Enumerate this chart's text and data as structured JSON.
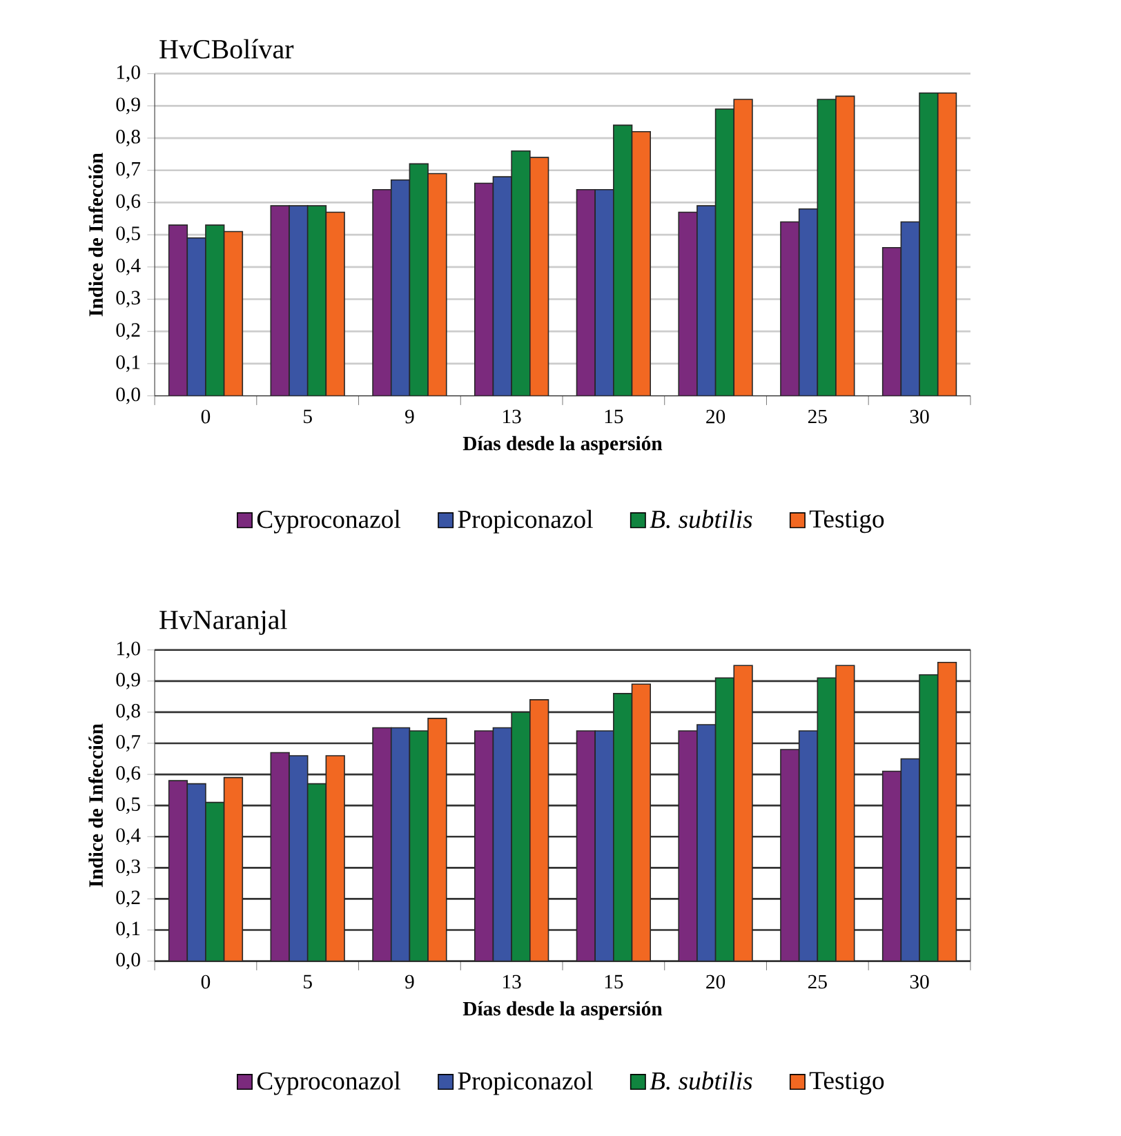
{
  "chart_data": [
    {
      "type": "bar",
      "title": "HvCBolívar",
      "xlabel": "Días desde la aspersión",
      "ylabel": "Indice de Infección",
      "categories": [
        "0",
        "5",
        "9",
        "13",
        "15",
        "20",
        "25",
        "30"
      ],
      "series": [
        {
          "name": "Cyproconazol",
          "color": "#7b2a7d",
          "values": [
            0.53,
            0.59,
            0.64,
            0.66,
            0.64,
            0.57,
            0.54,
            0.46
          ]
        },
        {
          "name": "Propiconazol",
          "color": "#3a55a4",
          "values": [
            0.49,
            0.59,
            0.67,
            0.68,
            0.64,
            0.59,
            0.58,
            0.54
          ]
        },
        {
          "name": "*B. subtilis*",
          "color": "#10843f",
          "values": [
            0.53,
            0.59,
            0.72,
            0.76,
            0.84,
            0.89,
            0.92,
            0.94
          ]
        },
        {
          "name": "Testigo",
          "color": "#f26822",
          "values": [
            0.51,
            0.57,
            0.69,
            0.74,
            0.82,
            0.92,
            0.93,
            0.94
          ]
        }
      ],
      "ylim": [
        0,
        1
      ],
      "yticks": [
        {
          "value": 0,
          "label": "0,0"
        },
        {
          "value": 0.1,
          "label": "0,1"
        },
        {
          "value": 0.2,
          "label": "0,2"
        },
        {
          "value": 0.3,
          "label": "0,3"
        },
        {
          "value": 0.4,
          "label": "0,4"
        },
        {
          "value": 0.5,
          "label": "0,5"
        },
        {
          "value": 0.6,
          "label": "0,6"
        },
        {
          "value": 0.7,
          "label": "0,7"
        },
        {
          "value": 0.8,
          "label": "0,8"
        },
        {
          "value": 0.9,
          "label": "0,9"
        },
        {
          "value": 1,
          "label": "1,0"
        }
      ],
      "grid": "y",
      "legend": "bottom"
    },
    {
      "type": "bar",
      "title": "HvNaranjal",
      "xlabel": "Días desde la aspersión",
      "ylabel": "Indice de Infección",
      "categories": [
        "0",
        "5",
        "9",
        "13",
        "15",
        "20",
        "25",
        "30"
      ],
      "series": [
        {
          "name": "Cyproconazol",
          "color": "#7b2a7d",
          "values": [
            0.58,
            0.67,
            0.75,
            0.74,
            0.74,
            0.74,
            0.68,
            0.61
          ]
        },
        {
          "name": "Propiconazol",
          "color": "#3a55a4",
          "values": [
            0.57,
            0.66,
            0.75,
            0.75,
            0.74,
            0.76,
            0.74,
            0.65
          ]
        },
        {
          "name": "*B. subtilis*",
          "color": "#10843f",
          "values": [
            0.51,
            0.57,
            0.74,
            0.8,
            0.86,
            0.91,
            0.91,
            0.92
          ]
        },
        {
          "name": "Testigo",
          "color": "#f26822",
          "values": [
            0.59,
            0.66,
            0.78,
            0.84,
            0.89,
            0.95,
            0.95,
            0.96
          ]
        }
      ],
      "ylim": [
        0,
        1
      ],
      "yticks": [
        {
          "value": 0,
          "label": "0,0"
        },
        {
          "value": 0.1,
          "label": "0,1"
        },
        {
          "value": 0.2,
          "label": "0,2"
        },
        {
          "value": 0.3,
          "label": "0,3"
        },
        {
          "value": 0.4,
          "label": "0,4"
        },
        {
          "value": 0.5,
          "label": "0,5"
        },
        {
          "value": 0.6,
          "label": "0,6"
        },
        {
          "value": 0.7,
          "label": "0,7"
        },
        {
          "value": 0.8,
          "label": "0,8"
        },
        {
          "value": 0.9,
          "label": "0,9"
        },
        {
          "value": 1,
          "label": "1,0"
        }
      ],
      "grid": "y",
      "legend": "bottom"
    }
  ]
}
